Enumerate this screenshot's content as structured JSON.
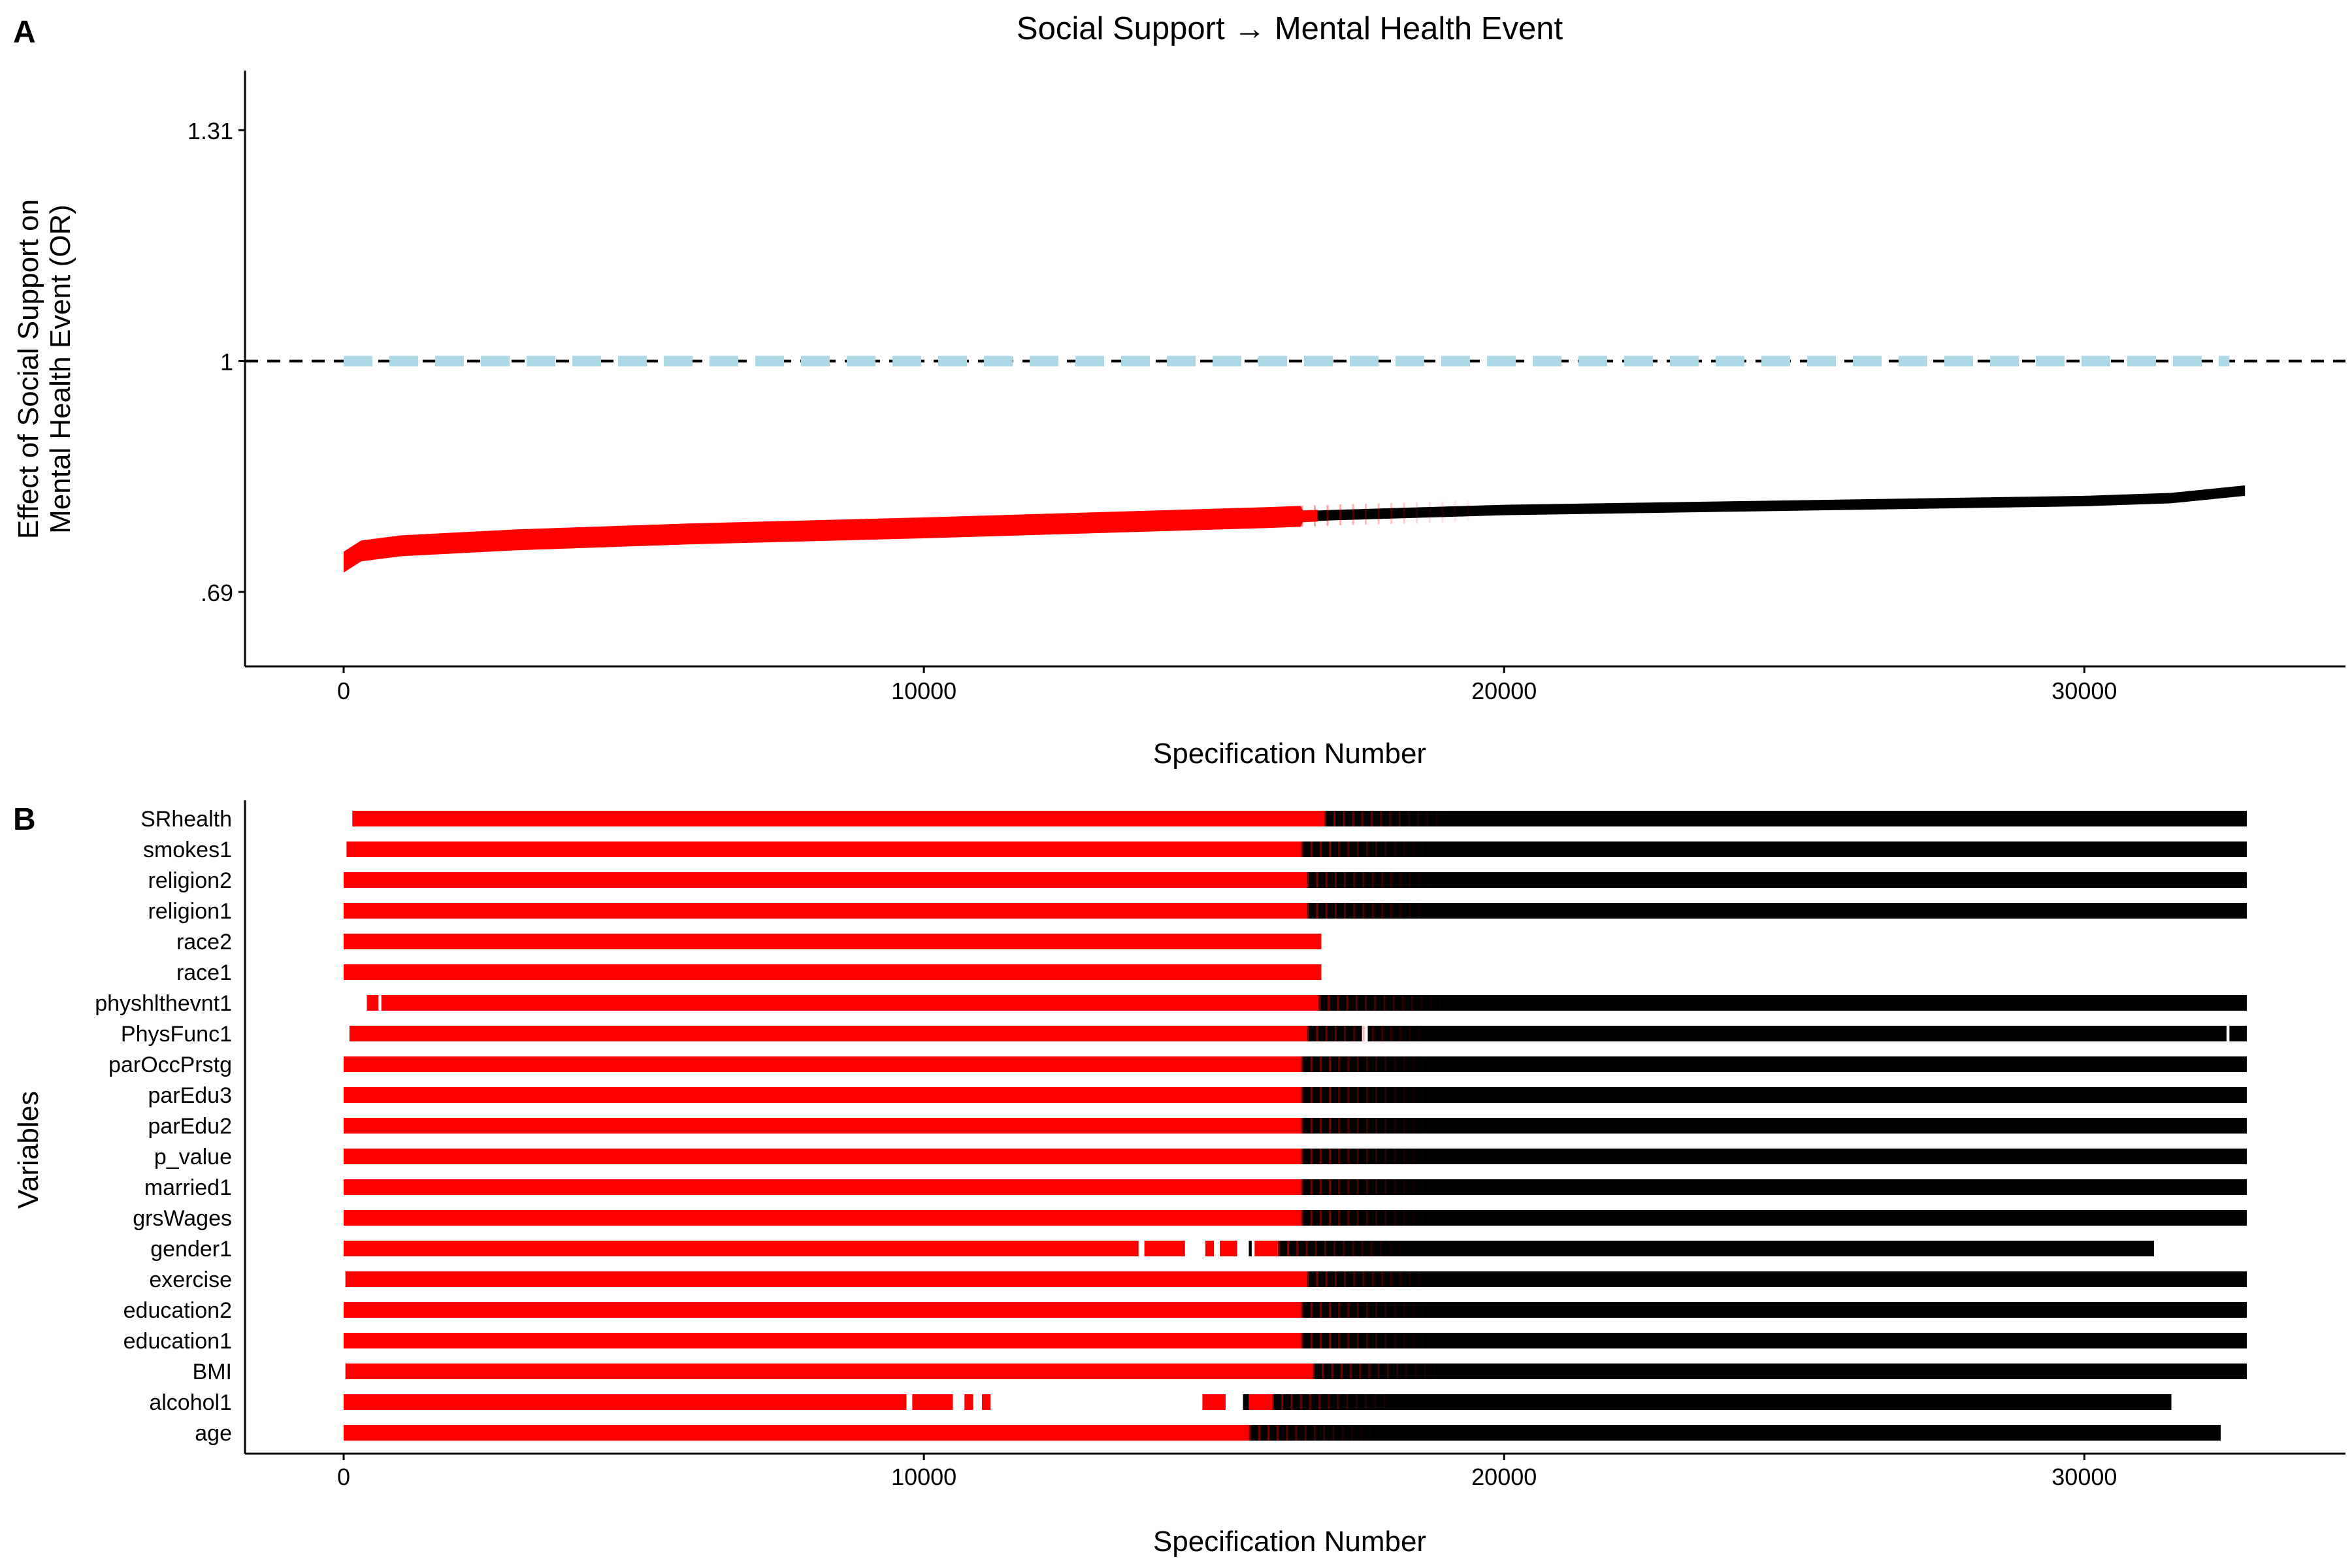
{
  "colors": {
    "significant": "#ff0000",
    "nonsignificant": "#000000",
    "ci_band": "#add8e6",
    "reference_line": "#000000"
  },
  "chart_data": [
    {
      "panel_label": "A",
      "type": "scatter",
      "title": "Social Support → Mental Health Event",
      "xlabel": "Specification Number",
      "ylabel_lines": [
        "Effect of Social Support on",
        "Mental Health Event (OR)"
      ],
      "xlim": [
        -1700,
        34500
      ],
      "ylim": [
        0.59,
        1.39
      ],
      "x_ticks": [
        0,
        10000,
        20000,
        30000
      ],
      "x_tick_labels": [
        "0",
        "10000",
        "20000",
        "30000"
      ],
      "y_ticks": [
        0.69,
        1,
        1.31
      ],
      "y_tick_labels": [
        ".69",
        "1",
        "1.31"
      ],
      "reference_line": 1,
      "grid": false,
      "n_specifications": 32768,
      "curve_points": [
        [
          0,
          0.73
        ],
        [
          300,
          0.745
        ],
        [
          1000,
          0.752
        ],
        [
          3000,
          0.76
        ],
        [
          6000,
          0.768
        ],
        [
          10000,
          0.776
        ],
        [
          13000,
          0.783
        ],
        [
          16000,
          0.79
        ],
        [
          17000,
          0.793
        ],
        [
          20000,
          0.8
        ],
        [
          25000,
          0.806
        ],
        [
          30000,
          0.812
        ],
        [
          31500,
          0.816
        ],
        [
          32768,
          0.826
        ]
      ],
      "significance_transition": [
        16500,
        19500
      ],
      "ci_band": {
        "x": [
          0,
          32500
        ],
        "y": 1.0,
        "style": "dashed"
      }
    },
    {
      "panel_label": "B",
      "type": "scatter",
      "xlabel": "Specification Number",
      "ylabel": "Variables",
      "xlim": [
        -1700,
        34500
      ],
      "x_ticks": [
        0,
        10000,
        20000,
        30000
      ],
      "x_tick_labels": [
        "0",
        "10000",
        "20000",
        "30000"
      ],
      "variables": [
        "SRhealth",
        "smokes1",
        "religion2",
        "religion1",
        "race2",
        "race1",
        "physhlthevnt1",
        "PhysFunc1",
        "parOccPrstg",
        "parEdu3",
        "parEdu2",
        "p_value",
        "married1",
        "grsWages",
        "gender1",
        "exercise",
        "education2",
        "education1",
        "BMI",
        "alcohol1",
        "age"
      ],
      "rows": [
        {
          "name": "SRhealth",
          "red": [
            [
              150,
              16900
            ]
          ],
          "black": [
            [
              16900,
              32800
            ]
          ]
        },
        {
          "name": "smokes1",
          "red": [
            [
              50,
              16500
            ]
          ],
          "black": [
            [
              16500,
              32800
            ]
          ]
        },
        {
          "name": "religion2",
          "red": [
            [
              0,
              16600
            ]
          ],
          "black": [
            [
              16600,
              32800
            ]
          ]
        },
        {
          "name": "religion1",
          "red": [
            [
              0,
              16600
            ]
          ],
          "black": [
            [
              16600,
              32800
            ]
          ]
        },
        {
          "name": "race2",
          "red": [
            [
              0,
              16850
            ]
          ],
          "black": []
        },
        {
          "name": "race1",
          "red": [
            [
              0,
              16850
            ]
          ],
          "black": []
        },
        {
          "name": "physhlthevnt1",
          "red": [
            [
              400,
              600
            ],
            [
              650,
              16800
            ]
          ],
          "black": [
            [
              16800,
              32800
            ]
          ]
        },
        {
          "name": "PhysFunc1",
          "red": [
            [
              100,
              16600
            ]
          ],
          "black": [
            [
              16600,
              17550
            ],
            [
              17650,
              32450
            ],
            [
              32500,
              32800
            ]
          ]
        },
        {
          "name": "parOccPrstg",
          "red": [
            [
              0,
              16500
            ]
          ],
          "black": [
            [
              16500,
              32800
            ]
          ]
        },
        {
          "name": "parEdu3",
          "red": [
            [
              0,
              16500
            ]
          ],
          "black": [
            [
              16500,
              32800
            ]
          ]
        },
        {
          "name": "parEdu2",
          "red": [
            [
              0,
              16500
            ]
          ],
          "black": [
            [
              16500,
              32800
            ]
          ]
        },
        {
          "name": "p_value",
          "red": [
            [
              0,
              16500
            ]
          ],
          "black": [
            [
              16500,
              32800
            ]
          ]
        },
        {
          "name": "married1",
          "red": [
            [
              0,
              16500
            ]
          ],
          "black": [
            [
              16500,
              32800
            ]
          ]
        },
        {
          "name": "grsWages",
          "red": [
            [
              0,
              16500
            ]
          ],
          "black": [
            [
              16500,
              32800
            ]
          ]
        },
        {
          "name": "gender1",
          "red": [
            [
              0,
              13700
            ],
            [
              13800,
              14500
            ],
            [
              14850,
              15000
            ],
            [
              15100,
              15400
            ],
            [
              15700,
              16100
            ]
          ],
          "black": [
            [
              15600,
              15650
            ],
            [
              16100,
              31200
            ]
          ]
        },
        {
          "name": "exercise",
          "red": [
            [
              30,
              16600
            ]
          ],
          "black": [
            [
              16600,
              32800
            ]
          ]
        },
        {
          "name": "education2",
          "red": [
            [
              0,
              16500
            ]
          ],
          "black": [
            [
              16500,
              32800
            ]
          ]
        },
        {
          "name": "education1",
          "red": [
            [
              0,
              16500
            ]
          ],
          "black": [
            [
              16500,
              32800
            ]
          ]
        },
        {
          "name": "BMI",
          "red": [
            [
              30,
              16700
            ]
          ],
          "black": [
            [
              16700,
              32800
            ]
          ]
        },
        {
          "name": "alcohol1",
          "red": [
            [
              0,
              9700
            ],
            [
              9800,
              10500
            ],
            [
              10700,
              10850
            ],
            [
              11000,
              11150
            ],
            [
              14800,
              15200
            ],
            [
              15600,
              16000
            ]
          ],
          "black": [
            [
              15500,
              15600
            ],
            [
              16000,
              31500
            ]
          ]
        },
        {
          "name": "age",
          "red": [
            [
              0,
              15600
            ]
          ],
          "black": [
            [
              15600,
              32350
            ]
          ]
        }
      ]
    }
  ]
}
